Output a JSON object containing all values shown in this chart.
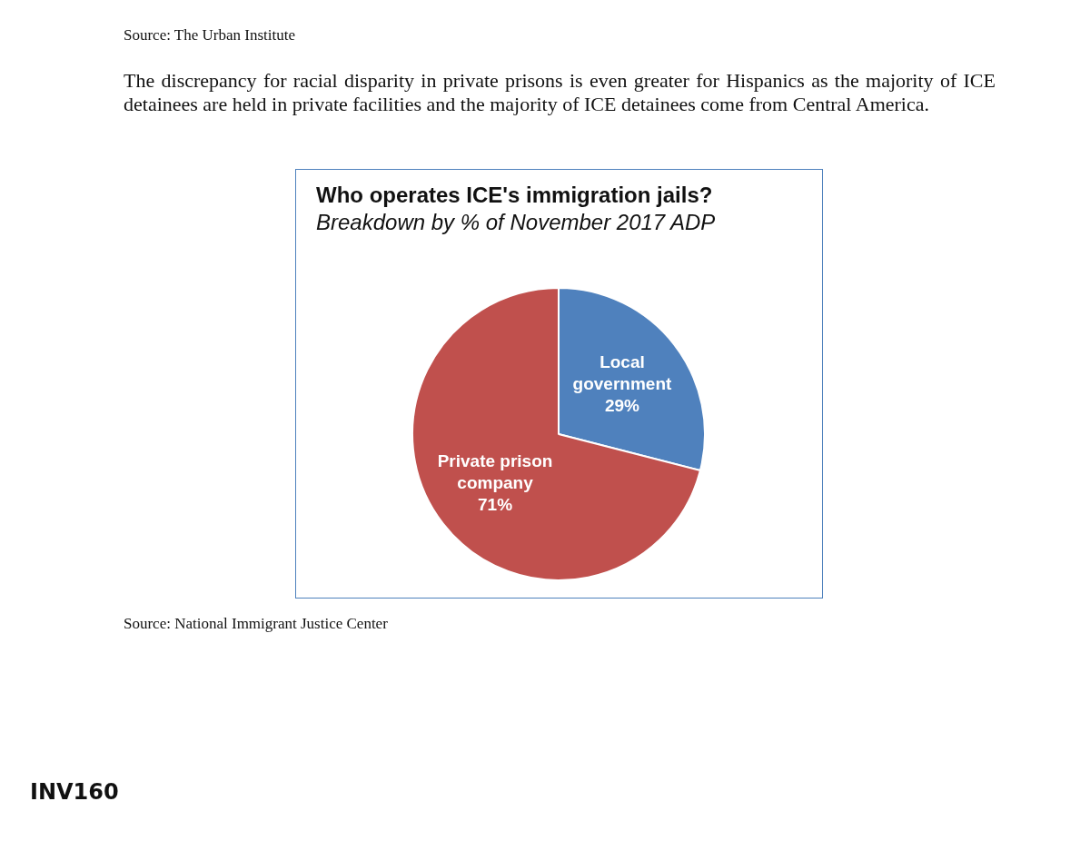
{
  "chart_data": {
    "type": "pie",
    "title": "Who operates ICE's immigration jails?",
    "subtitle": "Breakdown by % of November 2017 ADP",
    "categories": [
      "Local government",
      "Private prison company"
    ],
    "values": [
      29,
      71
    ],
    "colors": [
      "#4f81bd",
      "#c0504d"
    ],
    "value_labels": [
      "29%",
      "71%"
    ],
    "legend": false,
    "annotations": [
      "Source: The Urban Institute",
      "The discrepancy for racial disparity in private prisons is even greater for Hispanics as the majority of ICE detainees are held in private facilities and the majority of ICE detainees come from Central America.",
      "Source: National Immigrant Justice Center",
      "INV160"
    ]
  }
}
